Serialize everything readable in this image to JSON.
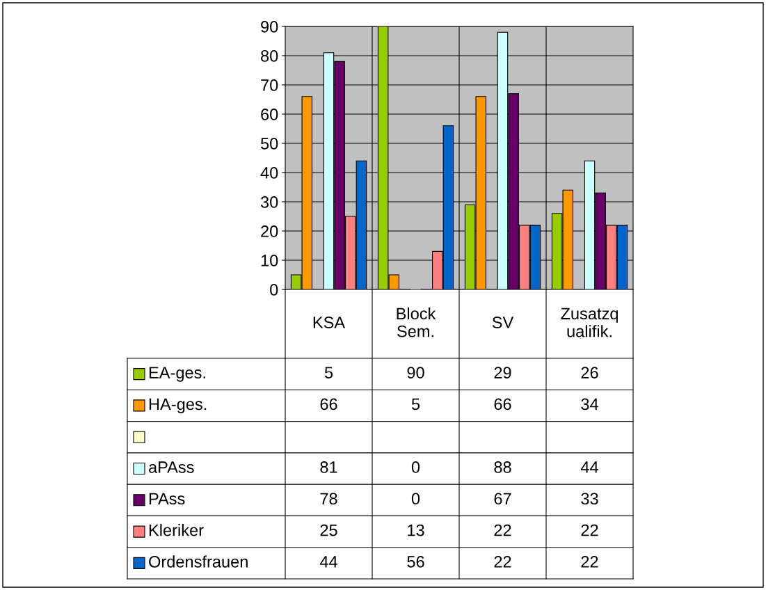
{
  "chart_data": {
    "type": "bar",
    "categories": [
      "KSA",
      "Block\nSem.",
      "SV",
      "Zusatzq\nualifik."
    ],
    "series": [
      {
        "name": "EA-ges.",
        "color": "#99cc00",
        "values": [
          5,
          90,
          29,
          26
        ]
      },
      {
        "name": "HA-ges.",
        "color": "#ff9900",
        "values": [
          66,
          5,
          66,
          34
        ]
      },
      {
        "color": "#ffffcc",
        "values": [
          null,
          null,
          null,
          null
        ]
      },
      {
        "name": "aPAss",
        "color": "#ccffff",
        "values": [
          81,
          0,
          88,
          44
        ]
      },
      {
        "name": "PAss",
        "color": "#660066",
        "values": [
          78,
          0,
          67,
          33
        ]
      },
      {
        "name": "Kleriker",
        "color": "#ff8080",
        "values": [
          25,
          13,
          22,
          22
        ]
      },
      {
        "name": "Ordensfrauen",
        "color": "#0066cc",
        "values": [
          44,
          56,
          22,
          22
        ]
      }
    ],
    "ylim": [
      0,
      90
    ],
    "yticks": [
      0,
      10,
      20,
      30,
      40,
      50,
      60,
      70,
      80,
      90
    ],
    "grid": "y",
    "data_labels": true,
    "legend": "bottom left"
  }
}
